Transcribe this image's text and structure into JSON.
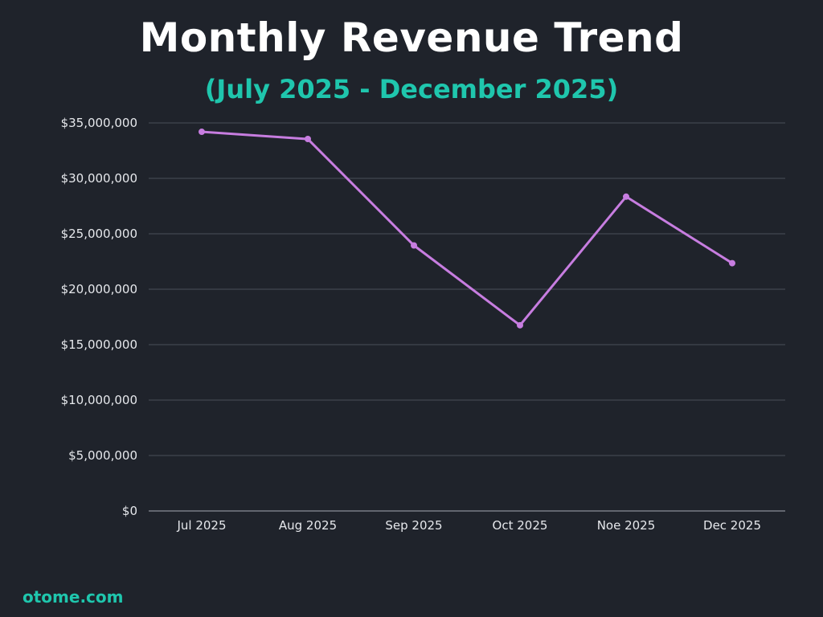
{
  "colors": {
    "background": "#1f232b",
    "title": "#ffffff",
    "accent": "#1fc6ad",
    "line": "#c77de0",
    "grid": "#4a4f58",
    "axis_text": "#e6e8ec"
  },
  "brand": {
    "text": "otome.com"
  },
  "chart_data": {
    "type": "line",
    "title": "Monthly Revenue Trend",
    "subtitle": "(July 2025 - December 2025)",
    "xlabel": "",
    "ylabel": "",
    "categories": [
      "Jul 2025",
      "Aug 2025",
      "Sep 2025",
      "Oct 2025",
      "Noe 2025",
      "Dec 2025"
    ],
    "series": [
      {
        "name": "Revenue",
        "values": [
          34200000,
          33550000,
          23950000,
          16750000,
          28350000,
          22350000
        ]
      }
    ],
    "ylim": [
      0,
      35000000
    ],
    "yticks": [
      0,
      5000000,
      10000000,
      15000000,
      20000000,
      25000000,
      30000000,
      35000000
    ],
    "ytick_labels": [
      "$0",
      "$5,000,000",
      "$10,000,000",
      "$15,000,000",
      "$20,000,000",
      "$25,000,000",
      "$30,000,000",
      "$35,000,000"
    ],
    "grid": true,
    "legend": "none"
  }
}
